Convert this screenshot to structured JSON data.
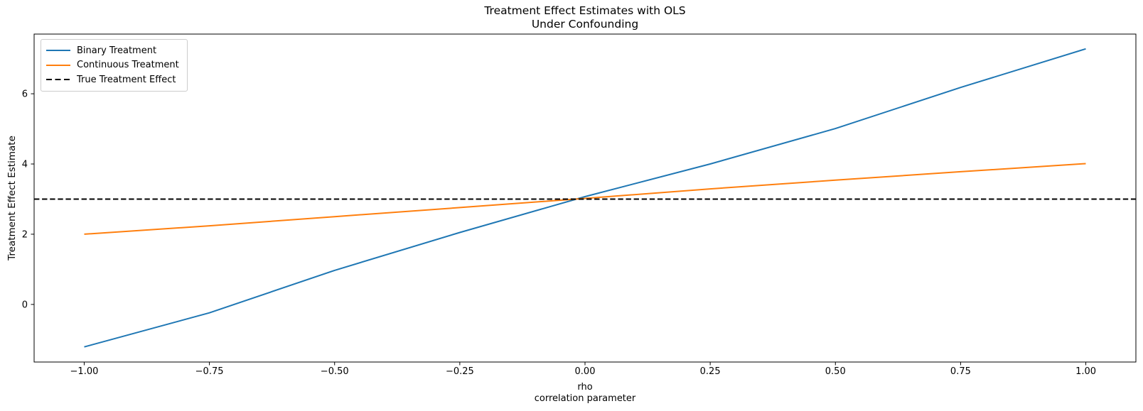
{
  "figure": {
    "background": "#ffffff"
  },
  "chart_data": {
    "type": "line",
    "title": "Treatment Effect Estimates with OLS\nUnder Confounding",
    "xlabel": "rho\ncorrelation parameter",
    "ylabel": "Treatment Effect Estimate",
    "x": [
      -1.0,
      -0.75,
      -0.5,
      -0.25,
      0.0,
      0.25,
      0.5,
      0.75,
      1.0
    ],
    "series": [
      {
        "name": "Binary Treatment",
        "color": "#1f77b4",
        "style": "solid",
        "values": [
          -1.21,
          -0.24,
          0.97,
          2.05,
          3.07,
          4.0,
          5.01,
          6.18,
          7.28
        ]
      },
      {
        "name": "Continuous Treatment",
        "color": "#ff7f0e",
        "style": "solid",
        "values": [
          2.0,
          2.24,
          2.5,
          2.76,
          3.02,
          3.29,
          3.54,
          3.78,
          4.01
        ]
      },
      {
        "name": "True Treatment Effect",
        "color": "#000000",
        "style": "dashed",
        "span_full_width": true,
        "constant": 3.0
      }
    ],
    "xlim": [
      -1.1,
      1.1
    ],
    "ylim": [
      -1.64,
      7.7
    ],
    "xticks": {
      "values": [
        -1.0,
        -0.75,
        -0.5,
        -0.25,
        0.0,
        0.25,
        0.5,
        0.75,
        1.0
      ],
      "labels": [
        "−1.00",
        "−0.75",
        "−0.50",
        "−0.25",
        "0.00",
        "0.25",
        "0.50",
        "0.75",
        "1.00"
      ]
    },
    "yticks": {
      "values": [
        0,
        2,
        4,
        6
      ],
      "labels": [
        "0",
        "2",
        "4",
        "6"
      ]
    },
    "legend": {
      "position": "upper left",
      "labels": [
        "Binary Treatment",
        "Continuous Treatment",
        "True Treatment Effect"
      ]
    },
    "grid": false,
    "axes_color": "#000000"
  }
}
